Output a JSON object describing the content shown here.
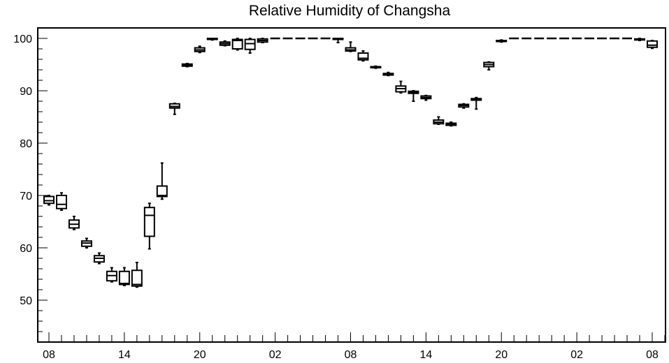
{
  "chart_data": {
    "type": "box",
    "title": "Relative Humidity of Changsha",
    "xlabel": "",
    "ylabel": "",
    "ylim": [
      42,
      102
    ],
    "yticks": [
      50,
      60,
      70,
      80,
      90,
      100
    ],
    "x_start_hour": 8,
    "x_max_hours": 49,
    "xtick_labels": [
      {
        "h": 0,
        "label": "08"
      },
      {
        "h": 6,
        "label": "14"
      },
      {
        "h": 12,
        "label": "20"
      },
      {
        "h": 18,
        "label": "02"
      },
      {
        "h": 24,
        "label": "08"
      },
      {
        "h": 30,
        "label": "14"
      },
      {
        "h": 36,
        "label": "20"
      },
      {
        "h": 42,
        "label": "02"
      },
      {
        "h": 48,
        "label": "08"
      }
    ],
    "boxes": [
      {
        "h": 0,
        "min": 68.2,
        "q1": 68.5,
        "median": 69.0,
        "q3": 69.8,
        "max": 70.0
      },
      {
        "h": 1,
        "min": 67.2,
        "q1": 67.5,
        "median": 68.3,
        "q3": 70.0,
        "max": 70.5
      },
      {
        "h": 2,
        "min": 63.5,
        "q1": 63.8,
        "median": 64.5,
        "q3": 65.3,
        "max": 66.0
      },
      {
        "h": 3,
        "min": 60.0,
        "q1": 60.3,
        "median": 60.9,
        "q3": 61.3,
        "max": 61.8
      },
      {
        "h": 4,
        "min": 57.0,
        "q1": 57.3,
        "median": 58.0,
        "q3": 58.5,
        "max": 59.0
      },
      {
        "h": 5,
        "min": 53.5,
        "q1": 53.7,
        "median": 54.7,
        "q3": 55.5,
        "max": 56.2
      },
      {
        "h": 6,
        "min": 52.8,
        "q1": 53.0,
        "median": 53.2,
        "q3": 55.5,
        "max": 56.2
      },
      {
        "h": 7,
        "min": 52.5,
        "q1": 52.7,
        "median": 53.0,
        "q3": 55.7,
        "max": 57.2
      },
      {
        "h": 8,
        "min": 59.8,
        "q1": 62.2,
        "median": 66.2,
        "q3": 67.7,
        "max": 68.5
      },
      {
        "h": 9,
        "min": 69.3,
        "q1": 69.8,
        "median": 70.0,
        "q3": 71.8,
        "max": 76.2
      },
      {
        "h": 10,
        "min": 85.5,
        "q1": 86.7,
        "median": 87.0,
        "q3": 87.5,
        "max": 87.6
      },
      {
        "h": 11,
        "min": 94.6,
        "q1": 94.7,
        "median": 94.9,
        "q3": 95.1,
        "max": 95.2
      },
      {
        "h": 12,
        "min": 97.3,
        "q1": 97.5,
        "median": 97.8,
        "q3": 98.2,
        "max": 98.5
      },
      {
        "h": 13,
        "min": 99.7,
        "q1": 99.8,
        "median": 99.9,
        "q3": 100.0,
        "max": 100.0
      },
      {
        "h": 14,
        "min": 98.6,
        "q1": 98.7,
        "median": 99.0,
        "q3": 99.3,
        "max": 99.5
      },
      {
        "h": 15,
        "min": 97.8,
        "q1": 98.0,
        "median": 99.6,
        "q3": 99.8,
        "max": 100.0
      },
      {
        "h": 16,
        "min": 97.2,
        "q1": 97.9,
        "median": 99.0,
        "q3": 99.8,
        "max": 100.0
      },
      {
        "h": 17,
        "min": 99.2,
        "q1": 99.3,
        "median": 99.6,
        "q3": 99.9,
        "max": 100.0
      },
      {
        "h": 18,
        "min": 100,
        "q1": 100,
        "median": 100,
        "q3": 100,
        "max": 100
      },
      {
        "h": 19,
        "min": 100,
        "q1": 100,
        "median": 100,
        "q3": 100,
        "max": 100
      },
      {
        "h": 20,
        "min": 100,
        "q1": 100,
        "median": 100,
        "q3": 100,
        "max": 100
      },
      {
        "h": 21,
        "min": 100,
        "q1": 100,
        "median": 100,
        "q3": 100,
        "max": 100
      },
      {
        "h": 22,
        "min": 100,
        "q1": 100,
        "median": 100,
        "q3": 100,
        "max": 100
      },
      {
        "h": 23,
        "min": 99.2,
        "q1": 99.8,
        "median": 99.9,
        "q3": 100,
        "max": 100
      },
      {
        "h": 24,
        "min": 97.5,
        "q1": 97.6,
        "median": 97.8,
        "q3": 98.2,
        "max": 99.3
      },
      {
        "h": 25,
        "min": 95.7,
        "q1": 95.9,
        "median": 96.2,
        "q3": 97.2,
        "max": 97.6
      },
      {
        "h": 26,
        "min": 94.3,
        "q1": 94.4,
        "median": 94.5,
        "q3": 94.6,
        "max": 94.7
      },
      {
        "h": 27,
        "min": 92.9,
        "q1": 93.0,
        "median": 93.2,
        "q3": 93.3,
        "max": 93.5
      },
      {
        "h": 28,
        "min": 89.6,
        "q1": 89.8,
        "median": 90.4,
        "q3": 90.9,
        "max": 91.8
      },
      {
        "h": 29,
        "min": 88.0,
        "q1": 89.5,
        "median": 89.7,
        "q3": 89.9,
        "max": 90.0
      },
      {
        "h": 30,
        "min": 88.2,
        "q1": 88.5,
        "median": 88.7,
        "q3": 89.0,
        "max": 89.1
      },
      {
        "h": 31,
        "min": 83.6,
        "q1": 83.7,
        "median": 84.0,
        "q3": 84.4,
        "max": 85.0
      },
      {
        "h": 32,
        "min": 83.3,
        "q1": 83.4,
        "median": 83.6,
        "q3": 83.8,
        "max": 84.0
      },
      {
        "h": 33,
        "min": 86.7,
        "q1": 86.9,
        "median": 87.2,
        "q3": 87.4,
        "max": 87.5
      },
      {
        "h": 34,
        "min": 86.5,
        "q1": 88.2,
        "median": 88.3,
        "q3": 88.5,
        "max": 88.7
      },
      {
        "h": 35,
        "min": 94.0,
        "q1": 94.6,
        "median": 95.0,
        "q3": 95.4,
        "max": 95.5
      },
      {
        "h": 36,
        "min": 99.3,
        "q1": 99.4,
        "median": 99.5,
        "q3": 99.6,
        "max": 99.7
      },
      {
        "h": 37,
        "min": 100,
        "q1": 100,
        "median": 100,
        "q3": 100,
        "max": 100
      },
      {
        "h": 38,
        "min": 100,
        "q1": 100,
        "median": 100,
        "q3": 100,
        "max": 100
      },
      {
        "h": 39,
        "min": 100,
        "q1": 100,
        "median": 100,
        "q3": 100,
        "max": 100
      },
      {
        "h": 40,
        "min": 100,
        "q1": 100,
        "median": 100,
        "q3": 100,
        "max": 100
      },
      {
        "h": 41,
        "min": 100,
        "q1": 100,
        "median": 100,
        "q3": 100,
        "max": 100
      },
      {
        "h": 42,
        "min": 100,
        "q1": 100,
        "median": 100,
        "q3": 100,
        "max": 100
      },
      {
        "h": 43,
        "min": 100,
        "q1": 100,
        "median": 100,
        "q3": 100,
        "max": 100
      },
      {
        "h": 44,
        "min": 100,
        "q1": 100,
        "median": 100,
        "q3": 100,
        "max": 100
      },
      {
        "h": 45,
        "min": 100,
        "q1": 100,
        "median": 100,
        "q3": 100,
        "max": 100
      },
      {
        "h": 46,
        "min": 100,
        "q1": 100,
        "median": 100,
        "q3": 100,
        "max": 100
      },
      {
        "h": 47,
        "min": 99.6,
        "q1": 99.7,
        "median": 99.8,
        "q3": 99.9,
        "max": 100
      },
      {
        "h": 48,
        "min": 98.1,
        "q1": 98.3,
        "median": 98.7,
        "q3": 99.5,
        "max": 99.6
      }
    ],
    "grid": false,
    "legend": "none",
    "colors": {
      "box": "#000000",
      "background": "#ffffff"
    }
  }
}
